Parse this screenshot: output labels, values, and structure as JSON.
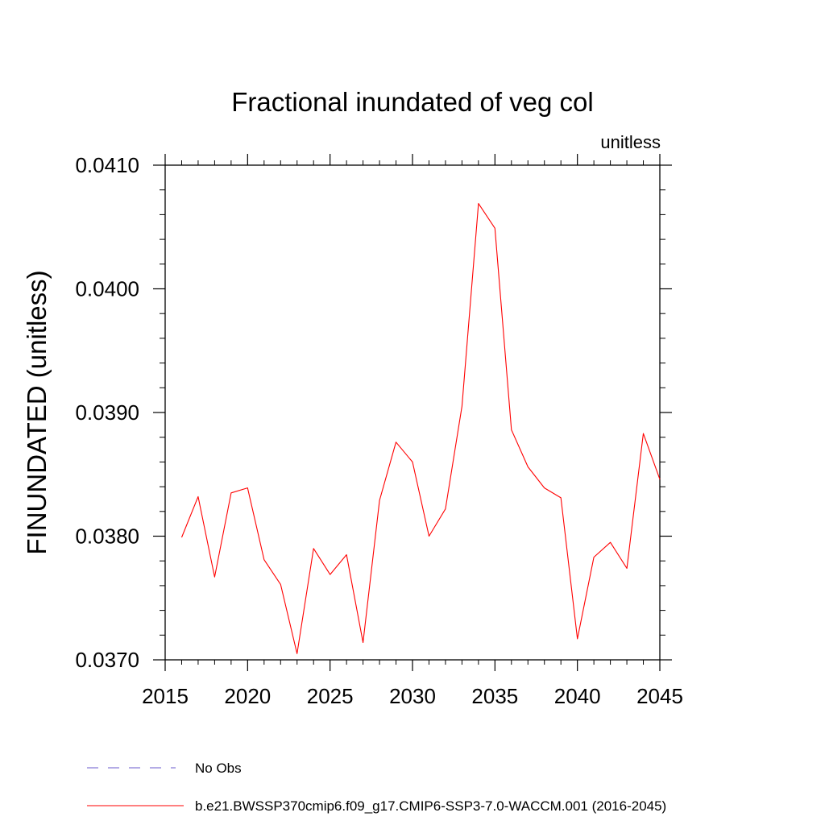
{
  "chart_data": {
    "type": "line",
    "title": "Fractional inundated of veg col",
    "units_label": "unitless",
    "xlabel": "",
    "ylabel": "FINUNDATED  (unitless)",
    "xlim": [
      2015,
      2045
    ],
    "ylim": [
      0.037,
      0.041
    ],
    "x_ticks": [
      2015,
      2020,
      2025,
      2030,
      2035,
      2040,
      2045
    ],
    "x_tick_labels": [
      "2015",
      "2020",
      "2025",
      "2030",
      "2035",
      "2040",
      "2045"
    ],
    "y_ticks": [
      0.037,
      0.038,
      0.039,
      0.04,
      0.041
    ],
    "y_tick_labels": [
      "0.0370",
      "0.0380",
      "0.0390",
      "0.0400",
      "0.0410"
    ],
    "y_minor_step": 0.0002,
    "grid": false,
    "legend_position": "bottom",
    "series": [
      {
        "name": "b.e21.BWSSP370cmip6.f09_g17.CMIP6-SSP3-7.0-WACCM.001 (2016-2045)",
        "color": "#ff0000",
        "x": [
          2016,
          2017,
          2018,
          2019,
          2020,
          2021,
          2022,
          2023,
          2024,
          2025,
          2026,
          2027,
          2028,
          2029,
          2030,
          2031,
          2032,
          2033,
          2034,
          2035,
          2036,
          2037,
          2038,
          2039,
          2040,
          2041,
          2042,
          2043,
          2044,
          2045
        ],
        "values": [
          0.03799,
          0.03832,
          0.03767,
          0.03835,
          0.03839,
          0.03781,
          0.03761,
          0.03705,
          0.0379,
          0.03769,
          0.03785,
          0.03714,
          0.03829,
          0.03876,
          0.0386,
          0.038,
          0.03822,
          0.03905,
          0.04069,
          0.04049,
          0.03886,
          0.03856,
          0.03839,
          0.03831,
          0.03717,
          0.03783,
          0.03795,
          0.03774,
          0.03883,
          0.03846
        ]
      }
    ],
    "legend": [
      {
        "label": "No Obs",
        "color": "#6a5acd",
        "style": "dashed"
      },
      {
        "label": "b.e21.BWSSP370cmip6.f09_g17.CMIP6-SSP3-7.0-WACCM.001 (2016-2045)",
        "color": "#ff0000",
        "style": "solid"
      }
    ]
  }
}
